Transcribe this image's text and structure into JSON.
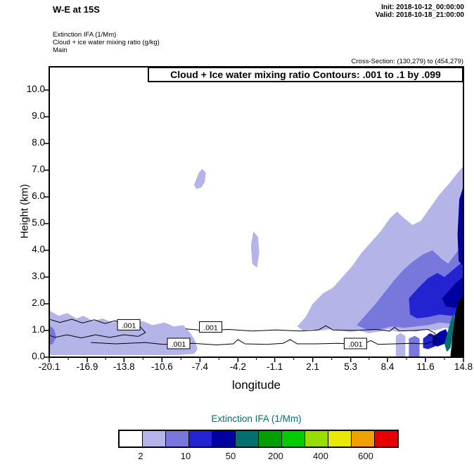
{
  "header": {
    "title": "W-E at 15S",
    "init_line": "Init: 2018-10-12_00:00:00",
    "valid_line": "Valid: 2018-10-18_21:00:00",
    "field_lines": [
      "Extinction IFA   (1/Mm)",
      "Cloud + ice water mixing ratio   (g/kg)",
      "Main"
    ],
    "cross_section": "Cross-Section: (130,279) to (454,279)"
  },
  "chart_data": {
    "type": "contour-cross-section",
    "title": "Cloud + Ice water mixing ratio Contours: .001 to .1 by .099",
    "xlabel": "longitude",
    "ylabel": "Height (km)",
    "xlim": [
      -20.1,
      14.8
    ],
    "ylim": [
      0,
      10.87
    ],
    "x_ticks": [
      {
        "value": -20.1,
        "label": "-20.1"
      },
      {
        "value": -16.9,
        "label": "-16.9"
      },
      {
        "value": -13.8,
        "label": "-13.8"
      },
      {
        "value": -10.6,
        "label": "-10.6"
      },
      {
        "value": -7.4,
        "label": "-7.4"
      },
      {
        "value": -4.2,
        "label": "-4.2"
      },
      {
        "value": -1.1,
        "label": "-1.1"
      },
      {
        "value": 2.1,
        "label": "2.1"
      },
      {
        "value": 5.3,
        "label": "5.3"
      },
      {
        "value": 8.4,
        "label": "8.4"
      },
      {
        "value": 11.6,
        "label": "11.6"
      },
      {
        "value": 14.8,
        "label": "14.8"
      }
    ],
    "y_ticks": [
      {
        "value": 0,
        "label": "0.0"
      },
      {
        "value": 1,
        "label": "1.0"
      },
      {
        "value": 2,
        "label": "2.0"
      },
      {
        "value": 3,
        "label": "3.0"
      },
      {
        "value": 4,
        "label": "4.0"
      },
      {
        "value": 5,
        "label": "5.0"
      },
      {
        "value": 6,
        "label": "6.0"
      },
      {
        "value": 7,
        "label": "7.0"
      },
      {
        "value": 8,
        "label": "8.0"
      },
      {
        "value": 9,
        "label": "9.0"
      },
      {
        "value": 10,
        "label": "10.0"
      }
    ],
    "shaded_field": "Extinction IFA (1/Mm)",
    "contour_field": "Cloud + Ice water mixing ratio (g/kg)",
    "contour_levels": [
      0.001,
      0.1
    ],
    "palette": {
      "lavender": "#b4b4e8",
      "medium": "#7878dc",
      "bright": "#2323d2",
      "navy": "#0000a0",
      "teal": "#007070",
      "black": "#000000"
    },
    "regions": [
      {
        "name": "left-lavender-layer",
        "color": "#b4b4e8",
        "points": [
          [
            -20.1,
            1.75
          ],
          [
            -19.3,
            1.55
          ],
          [
            -18.6,
            1.65
          ],
          [
            -17.8,
            1.45
          ],
          [
            -17.2,
            1.55
          ],
          [
            -16.4,
            1.35
          ],
          [
            -15.6,
            1.45
          ],
          [
            -14.8,
            1.3
          ],
          [
            -14.0,
            1.4
          ],
          [
            -13.2,
            1.3
          ],
          [
            -12.2,
            1.35
          ],
          [
            -11.4,
            1.2
          ],
          [
            -10.4,
            1.3
          ],
          [
            -9.6,
            1.15
          ],
          [
            -8.8,
            1.2
          ],
          [
            -8.2,
            0.9
          ],
          [
            -7.8,
            0.6
          ],
          [
            -7.6,
            0.3
          ],
          [
            -7.9,
            0.12
          ],
          [
            -9.5,
            0.08
          ],
          [
            -20.1,
            0.08
          ]
        ]
      },
      {
        "name": "left-edge-medium-speck",
        "color": "#7878dc",
        "points": [
          [
            -20.1,
            1.2
          ],
          [
            -19.7,
            1.05
          ],
          [
            -19.5,
            0.75
          ],
          [
            -19.8,
            0.5
          ],
          [
            -20.1,
            0.45
          ]
        ]
      },
      {
        "name": "upper-blob-lavender",
        "color": "#b4b4e8",
        "points": [
          [
            -7.9,
            6.45
          ],
          [
            -7.5,
            6.9
          ],
          [
            -7.2,
            7.05
          ],
          [
            -6.9,
            6.9
          ],
          [
            -7.0,
            6.55
          ],
          [
            -7.3,
            6.35
          ],
          [
            -7.7,
            6.3
          ]
        ]
      },
      {
        "name": "midlevel-blob-lavender",
        "color": "#b4b4e8",
        "points": [
          [
            -2.9,
            4.7
          ],
          [
            -2.5,
            4.5
          ],
          [
            -2.4,
            3.9
          ],
          [
            -2.6,
            3.35
          ],
          [
            -3.0,
            3.5
          ],
          [
            -3.1,
            4.2
          ]
        ]
      },
      {
        "name": "right-lavender-mass",
        "color": "#b4b4e8",
        "points": [
          [
            0.8,
            1.15
          ],
          [
            1.5,
            1.5
          ],
          [
            2.1,
            2.0
          ],
          [
            3.0,
            2.4
          ],
          [
            3.8,
            2.6
          ],
          [
            4.6,
            3.0
          ],
          [
            5.4,
            3.4
          ],
          [
            6.2,
            3.9
          ],
          [
            7.0,
            4.3
          ],
          [
            7.8,
            4.7
          ],
          [
            8.6,
            5.2
          ],
          [
            9.2,
            5.45
          ],
          [
            9.8,
            5.2
          ],
          [
            10.5,
            4.95
          ],
          [
            11.2,
            5.1
          ],
          [
            12.0,
            5.6
          ],
          [
            12.8,
            6.1
          ],
          [
            13.6,
            6.5
          ],
          [
            14.3,
            6.9
          ],
          [
            14.8,
            7.15
          ],
          [
            14.8,
            1.1
          ],
          [
            14.0,
            1.05
          ],
          [
            13.2,
            1.1
          ],
          [
            12.4,
            1.0
          ],
          [
            11.6,
            1.05
          ],
          [
            10.8,
            0.95
          ],
          [
            10.0,
            1.0
          ],
          [
            9.2,
            0.95
          ],
          [
            8.4,
            1.05
          ],
          [
            7.6,
            0.95
          ],
          [
            6.8,
            0.9
          ],
          [
            6.0,
            1.0
          ],
          [
            5.2,
            0.95
          ],
          [
            4.4,
            1.0
          ],
          [
            3.6,
            1.05
          ],
          [
            2.8,
            1.0
          ],
          [
            2.0,
            1.05
          ],
          [
            1.3,
            1.0
          ]
        ]
      },
      {
        "name": "right-medium-blue",
        "color": "#7878dc",
        "points": [
          [
            5.8,
            1.2
          ],
          [
            6.6,
            1.6
          ],
          [
            7.4,
            2.0
          ],
          [
            8.2,
            2.45
          ],
          [
            9.0,
            2.9
          ],
          [
            9.8,
            3.3
          ],
          [
            10.6,
            3.6
          ],
          [
            11.4,
            3.85
          ],
          [
            12.2,
            4.0
          ],
          [
            12.9,
            3.7
          ],
          [
            13.5,
            3.5
          ],
          [
            14.2,
            3.9
          ],
          [
            14.8,
            4.3
          ],
          [
            14.8,
            1.3
          ],
          [
            13.8,
            1.25
          ],
          [
            12.8,
            1.3
          ],
          [
            11.8,
            1.2
          ],
          [
            10.8,
            1.15
          ],
          [
            9.8,
            1.1
          ],
          [
            8.8,
            1.15
          ],
          [
            7.8,
            1.05
          ],
          [
            6.8,
            1.0
          ]
        ]
      },
      {
        "name": "right-bright-blue-core",
        "color": "#2323d2",
        "points": [
          [
            10.2,
            2.2
          ],
          [
            11.0,
            2.6
          ],
          [
            11.8,
            2.95
          ],
          [
            12.6,
            3.15
          ],
          [
            13.2,
            3.0
          ],
          [
            14.0,
            3.3
          ],
          [
            14.8,
            3.6
          ],
          [
            14.8,
            1.6
          ],
          [
            13.8,
            1.55
          ],
          [
            12.8,
            1.6
          ],
          [
            11.8,
            1.5
          ],
          [
            10.9,
            1.45
          ],
          [
            10.3,
            1.6
          ]
        ]
      },
      {
        "name": "right-navy-core",
        "color": "#0000a0",
        "points": [
          [
            13.0,
            2.2
          ],
          [
            13.6,
            2.5
          ],
          [
            14.2,
            2.8
          ],
          [
            14.8,
            3.0
          ],
          [
            14.8,
            1.9
          ],
          [
            14.0,
            1.85
          ],
          [
            13.3,
            1.9
          ]
        ]
      },
      {
        "name": "right-edge-navy-sliver",
        "color": "#0000a0",
        "points": [
          [
            14.45,
            5.9
          ],
          [
            14.8,
            6.4
          ],
          [
            14.8,
            3.4
          ],
          [
            14.4,
            3.6
          ],
          [
            14.3,
            4.6
          ]
        ]
      },
      {
        "name": "bottom-right-lavender-column",
        "color": "#b4b4e8",
        "points": [
          [
            9.1,
            0
          ],
          [
            9.1,
            0.8
          ],
          [
            9.5,
            0.9
          ],
          [
            9.9,
            0.8
          ],
          [
            9.9,
            0
          ]
        ]
      },
      {
        "name": "bottom-right-medium-column",
        "color": "#7878dc",
        "points": [
          [
            10.2,
            0
          ],
          [
            10.2,
            0.7
          ],
          [
            10.7,
            0.8
          ],
          [
            11.1,
            0.7
          ],
          [
            11.1,
            0
          ]
        ]
      },
      {
        "name": "bottom-right-bright-patch",
        "color": "#2323d2",
        "points": [
          [
            11.4,
            0.7
          ],
          [
            12.0,
            0.9
          ],
          [
            12.5,
            0.8
          ],
          [
            12.4,
            0.4
          ],
          [
            11.8,
            0.3
          ],
          [
            11.4,
            0.35
          ]
        ]
      },
      {
        "name": "bottom-right-navy-patch",
        "color": "#0000a0",
        "points": [
          [
            12.2,
            0.75
          ],
          [
            12.8,
            0.95
          ],
          [
            13.3,
            1.05
          ],
          [
            13.6,
            0.8
          ],
          [
            13.2,
            0.5
          ],
          [
            12.6,
            0.4
          ],
          [
            12.2,
            0.45
          ]
        ]
      },
      {
        "name": "bottom-right-teal-patch",
        "color": "#007070",
        "points": [
          [
            13.2,
            0.5
          ],
          [
            13.5,
            1.0
          ],
          [
            13.8,
            1.45
          ],
          [
            14.05,
            1.7
          ],
          [
            13.95,
            0.9
          ],
          [
            13.7,
            0.35
          ],
          [
            13.4,
            0.2
          ]
        ]
      },
      {
        "name": "bottom-right-black-wedge",
        "color": "#000000",
        "points": [
          [
            13.7,
            0
          ],
          [
            13.9,
            0.9
          ],
          [
            14.1,
            1.6
          ],
          [
            14.35,
            2.05
          ],
          [
            14.6,
            2.2
          ],
          [
            14.8,
            2.3
          ],
          [
            14.8,
            0
          ]
        ]
      }
    ],
    "contour_lines": [
      {
        "name": "loop-left-001",
        "points": [
          [
            -20.1,
            1.42
          ],
          [
            -19.2,
            1.3
          ],
          [
            -18.2,
            1.42
          ],
          [
            -17.3,
            1.28
          ],
          [
            -16.3,
            1.4
          ],
          [
            -15.4,
            1.26
          ],
          [
            -14.6,
            1.36
          ],
          [
            -13.3,
            1.28
          ],
          [
            -12.4,
            1.12
          ],
          [
            -12.0,
            0.92
          ],
          [
            -12.6,
            0.78
          ],
          [
            -13.8,
            0.84
          ],
          [
            -15.0,
            0.74
          ],
          [
            -16.2,
            0.84
          ],
          [
            -17.4,
            0.72
          ],
          [
            -18.6,
            0.84
          ],
          [
            -19.6,
            0.74
          ],
          [
            -20.1,
            0.82
          ]
        ]
      },
      {
        "name": "long-001-upper",
        "points": [
          [
            -8.6,
            1.06
          ],
          [
            -7.0,
            1.0
          ],
          [
            -5.0,
            1.04
          ],
          [
            -3.0,
            0.98
          ],
          [
            -1.0,
            1.02
          ],
          [
            1.0,
            0.98
          ],
          [
            2.6,
            1.02
          ],
          [
            3.2,
            1.18
          ],
          [
            3.8,
            1.02
          ],
          [
            5.6,
            1.0
          ],
          [
            7.4,
            1.04
          ],
          [
            8.6,
            0.98
          ],
          [
            9.0,
            1.12
          ],
          [
            9.4,
            0.98
          ],
          [
            10.6,
            1.0
          ],
          [
            11.8,
            1.04
          ],
          [
            12.4,
            0.9
          ],
          [
            12.5,
            0.7
          ]
        ]
      },
      {
        "name": "long-001-lower",
        "points": [
          [
            -16.6,
            0.55
          ],
          [
            -14.5,
            0.5
          ],
          [
            -12.0,
            0.55
          ],
          [
            -10.5,
            0.48
          ],
          [
            -8.0,
            0.52
          ],
          [
            -6.0,
            0.46
          ],
          [
            -4.6,
            0.5
          ],
          [
            -4.2,
            0.66
          ],
          [
            -3.6,
            0.5
          ],
          [
            -1.8,
            0.48
          ],
          [
            -0.4,
            0.52
          ],
          [
            0.2,
            0.66
          ],
          [
            0.8,
            0.5
          ],
          [
            2.4,
            0.5
          ],
          [
            4.2,
            0.52
          ],
          [
            6.2,
            0.48
          ],
          [
            7.0,
            0.62
          ],
          [
            7.6,
            0.48
          ],
          [
            9.0,
            0.5
          ],
          [
            10.4,
            0.52
          ],
          [
            11.6,
            0.5
          ],
          [
            12.3,
            0.6
          ],
          [
            12.4,
            0.75
          ],
          [
            11.8,
            0.85
          ]
        ]
      }
    ],
    "contour_labels": [
      {
        "text": ".001",
        "x": -13.4,
        "y": 1.2
      },
      {
        "text": ".001",
        "x": -6.5,
        "y": 1.12
      },
      {
        "text": ".001",
        "x": -9.2,
        "y": 0.5
      },
      {
        "text": ".001",
        "x": 5.7,
        "y": 0.5
      }
    ]
  },
  "colorbar": {
    "title": "Extinction IFA   (1/Mm)",
    "title_color": "#007272",
    "colors": [
      "#ffffff",
      "#b4b4e8",
      "#7878dc",
      "#2323d2",
      "#0000a0",
      "#007070",
      "#00a000",
      "#00cc00",
      "#99dd00",
      "#e8e800",
      "#f0a000",
      "#e60000"
    ],
    "labels": [
      {
        "text": "2",
        "boundary": 1
      },
      {
        "text": "10",
        "boundary": 3
      },
      {
        "text": "50",
        "boundary": 5
      },
      {
        "text": "200",
        "boundary": 7
      },
      {
        "text": "400",
        "boundary": 9
      },
      {
        "text": "600",
        "boundary": 11
      }
    ]
  }
}
